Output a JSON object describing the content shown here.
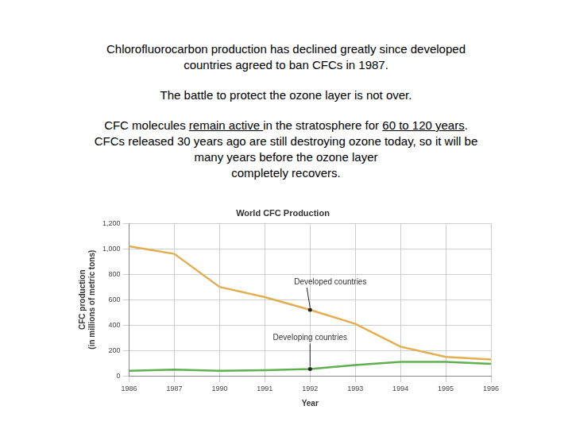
{
  "slide": {
    "paragraphs": [
      [
        [
          {
            "text": "Chlorofluorocarbon production has declined greatly since developed"
          }
        ],
        [
          {
            "text": "countries agreed to ban CFCs in 1987."
          }
        ]
      ],
      [
        [
          {
            "text": "The battle to protect the ozone layer is not over."
          }
        ]
      ],
      [
        [
          {
            "text": "CFC molecules "
          },
          {
            "text": "remain active ",
            "underline": true
          },
          {
            "text": "in the stratosphere for "
          },
          {
            "text": "60 to 120 years",
            "underline": true
          },
          {
            "text": "."
          }
        ],
        [
          {
            "text": "CFCs released 30 years ago are still destroying ozone today, so it will be"
          }
        ],
        [
          {
            "text": "many years before the ozone layer"
          }
        ],
        [
          {
            "text": "completely recovers."
          }
        ]
      ]
    ]
  },
  "chart_data": {
    "type": "line",
    "title": "World CFC Production",
    "x_label": "Year",
    "y_label": [
      "CFC production",
      "(in millions of metric tons)"
    ],
    "categories": [
      "1986",
      "1987",
      "1990",
      "1991",
      "1992",
      "1993",
      "1994",
      "1995",
      "1996"
    ],
    "series": [
      {
        "name": "Developed countries",
        "color": "#e3ae4f",
        "values": [
          1020,
          960,
          700,
          620,
          520,
          410,
          230,
          150,
          130
        ]
      },
      {
        "name": "Developing countries",
        "color": "#5fb04f",
        "values": [
          40,
          50,
          40,
          45,
          55,
          85,
          110,
          110,
          95
        ]
      }
    ],
    "ylim": [
      0,
      1200
    ],
    "yticks": [
      0,
      200,
      400,
      600,
      800,
      {
        "value": 1000,
        "label": "1,000"
      },
      {
        "value": 1200,
        "label": "1,200"
      }
    ],
    "grid": true
  }
}
